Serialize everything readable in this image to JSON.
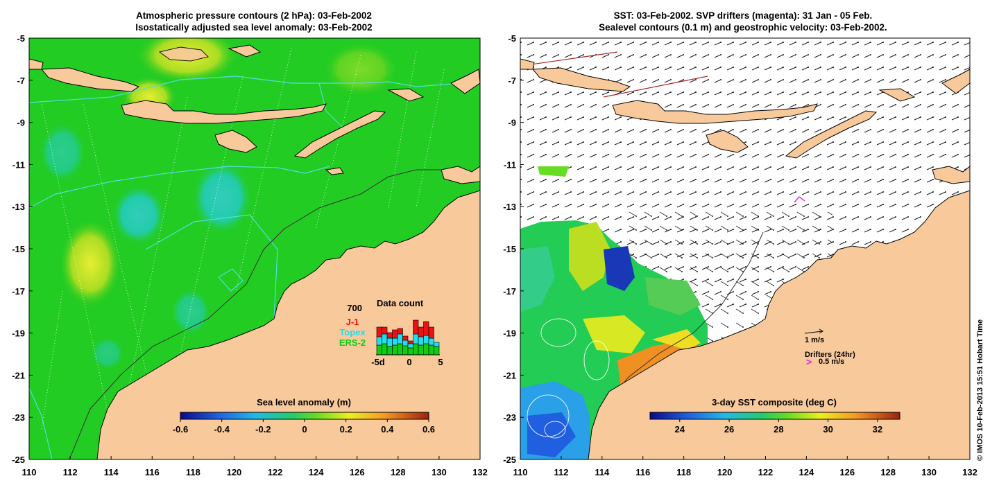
{
  "left_panel": {
    "title_line1": "Atmospheric pressure contours (2 hPa): 03-Feb-2002",
    "title_line2": "Isostatically adjusted sea level anomaly: 03-Feb-2002",
    "colorbar": {
      "label": "Sea level anomaly (m)",
      "min": -0.6,
      "max": 0.6,
      "ticks": [
        "-0.6",
        "-0.4",
        "-0.2",
        "0",
        "0.2",
        "0.4",
        "0.6"
      ]
    },
    "data_count": {
      "title": "Data count",
      "max_label": "700",
      "legend": [
        {
          "name": "J-1",
          "color": "#ee1111"
        },
        {
          "name": "Topex",
          "color": "#22ddee"
        },
        {
          "name": "ERS-2",
          "color": "#11cc11"
        }
      ],
      "x_ticks": [
        "-5d",
        "0",
        "5"
      ]
    }
  },
  "right_panel": {
    "title_line1": "SST: 03-Feb-2002. SVP drifters (magenta): 31 Jan - 05 Feb.",
    "title_line2": "Sealevel contours (0.1 m) and geostrophic velocity: 03-Feb-2002.",
    "colorbar": {
      "label": "3-day SST composite (deg C)",
      "min": 22.8,
      "max": 32.9,
      "ticks": [
        "24",
        "26",
        "28",
        "30",
        "32"
      ]
    },
    "velocity_legend": "1 m/s",
    "drifter_legend_title": "Drifters (24hr)",
    "drifter_legend_marker": ">",
    "drifter_legend_value": "0.5 m/s"
  },
  "axes": {
    "lat_ticks": [
      "-5",
      "-7",
      "-9",
      "-11",
      "-13",
      "-15",
      "-17",
      "-19",
      "-21",
      "-23",
      "-25"
    ],
    "lon_ticks": [
      "110",
      "112",
      "114",
      "116",
      "118",
      "120",
      "122",
      "124",
      "126",
      "128",
      "130",
      "132"
    ]
  },
  "credit": "© IMOS 10-Feb-2013 15:51 Hobart Time",
  "colors": {
    "land": "#f8c99b",
    "ocean_green": "#22cc22",
    "ocean_cyan": "#33ccaa",
    "anomaly_yellow": "#ccee22",
    "contour_cyan": "#55dddd"
  }
}
